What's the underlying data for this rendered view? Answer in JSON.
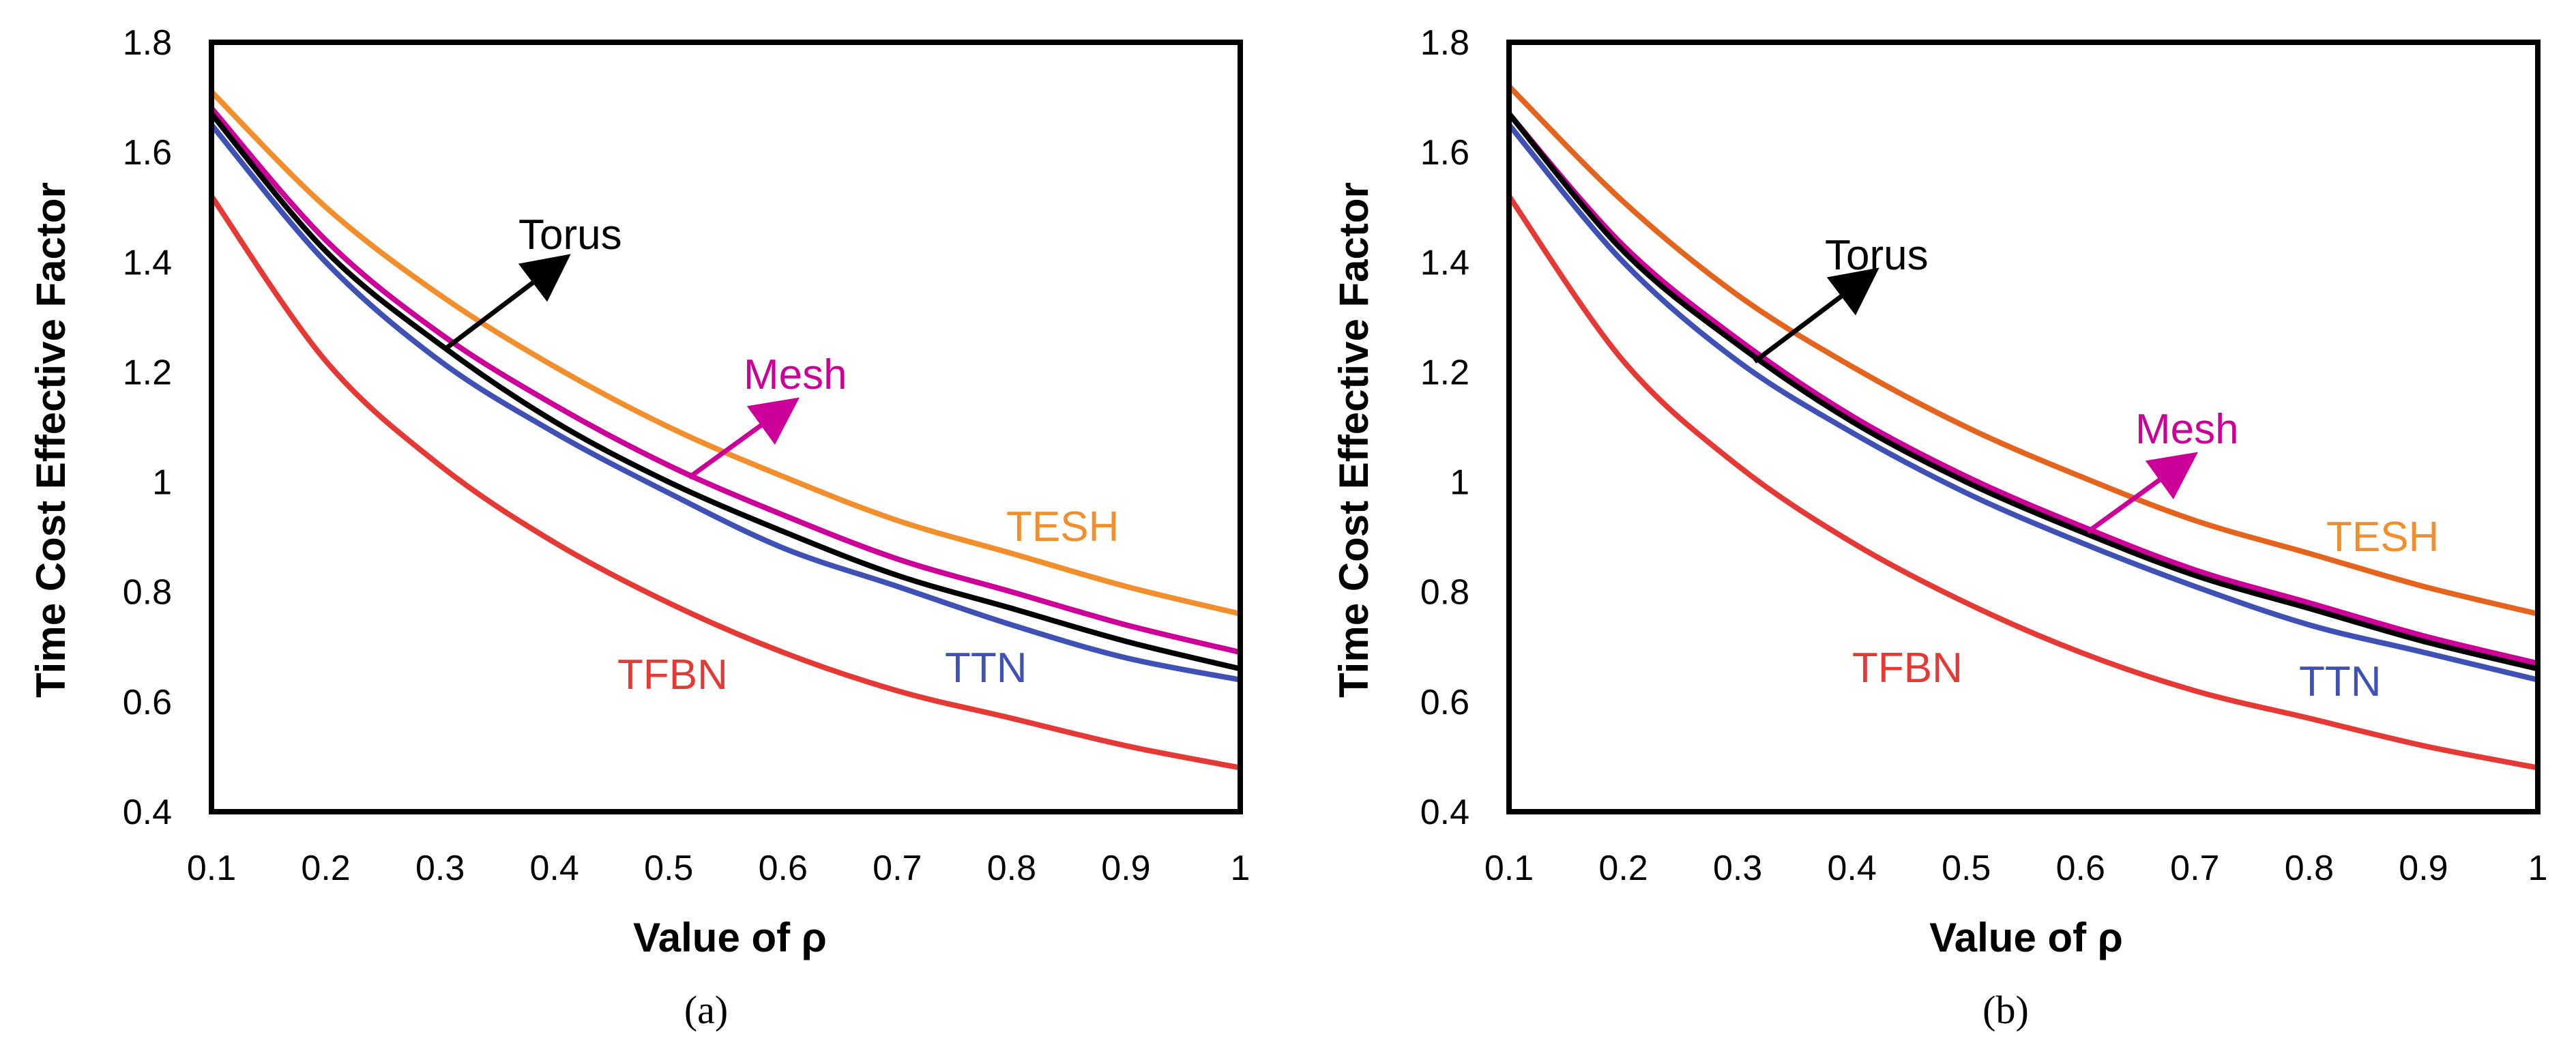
{
  "chart_data": [
    {
      "type": "line",
      "caption": "(a)",
      "title": "",
      "xlabel": "Value of ρ",
      "ylabel": "Time  Cost Effective Factor",
      "xlim": [
        0.1,
        1
      ],
      "ylim": [
        0.4,
        1.8
      ],
      "xticks": [
        "0.1",
        "0.2",
        "0.3",
        "0.4",
        "0.5",
        "0.6",
        "0.7",
        "0.8",
        "0.9",
        "1"
      ],
      "yticks": [
        "0.4",
        "0.6",
        "0.8",
        "1",
        "1.2",
        "1.4",
        "1.6",
        "1.8"
      ],
      "x": [
        0.1,
        0.2,
        0.3,
        0.4,
        0.5,
        0.6,
        0.7,
        0.8,
        0.9,
        1.0
      ],
      "series": [
        {
          "name": "TESH",
          "color": "#f28e2b",
          "values": [
            1.71,
            1.5,
            1.34,
            1.21,
            1.1,
            1.01,
            0.93,
            0.87,
            0.81,
            0.76
          ]
        },
        {
          "name": "Mesh",
          "color": "#cc0099",
          "values": [
            1.68,
            1.44,
            1.27,
            1.14,
            1.03,
            0.94,
            0.86,
            0.8,
            0.74,
            0.69
          ]
        },
        {
          "name": "Torus",
          "color": "#000000",
          "values": [
            1.67,
            1.42,
            1.25,
            1.11,
            1.0,
            0.91,
            0.83,
            0.77,
            0.71,
            0.66
          ]
        },
        {
          "name": "TTN",
          "color": "#3f51b5",
          "values": [
            1.65,
            1.4,
            1.22,
            1.09,
            0.98,
            0.88,
            0.81,
            0.74,
            0.68,
            0.64
          ]
        },
        {
          "name": "TFBN",
          "color": "#e53935",
          "values": [
            1.52,
            1.22,
            1.03,
            0.89,
            0.78,
            0.69,
            0.62,
            0.57,
            0.52,
            0.48
          ]
        }
      ],
      "annotations": [
        {
          "text": "Torus",
          "color": "#000000",
          "arrow": true
        },
        {
          "text": "Mesh",
          "color": "#cc0099",
          "arrow": true
        },
        {
          "text": "TESH",
          "color": "#f28e2b",
          "arrow": false
        },
        {
          "text": "TTN",
          "color": "#3f51b5",
          "arrow": false
        },
        {
          "text": "TFBN",
          "color": "#e53935",
          "arrow": false
        }
      ]
    },
    {
      "type": "line",
      "caption": "(b)",
      "title": "",
      "xlabel": "Value of ρ",
      "ylabel": "Time Cost Effective Factor",
      "xlim": [
        0.1,
        1
      ],
      "ylim": [
        0.4,
        1.8
      ],
      "xticks": [
        "0.1",
        "0.2",
        "0.3",
        "0.4",
        "0.5",
        "0.6",
        "0.7",
        "0.8",
        "0.9",
        "1"
      ],
      "yticks": [
        "0.4",
        "0.6",
        "0.8",
        "1",
        "1.2",
        "1.4",
        "1.6",
        "1.8"
      ],
      "x": [
        0.1,
        0.2,
        0.3,
        0.4,
        0.5,
        0.6,
        0.7,
        0.8,
        0.9,
        1.0
      ],
      "series": [
        {
          "name": "TESH",
          "color": "#e4641e",
          "values": [
            1.72,
            1.51,
            1.34,
            1.21,
            1.1,
            1.01,
            0.93,
            0.87,
            0.81,
            0.76
          ]
        },
        {
          "name": "Mesh",
          "color": "#cc0099",
          "values": [
            1.67,
            1.43,
            1.26,
            1.12,
            1.01,
            0.92,
            0.84,
            0.78,
            0.72,
            0.67
          ]
        },
        {
          "name": "Torus",
          "color": "#000000",
          "values": [
            1.67,
            1.42,
            1.25,
            1.11,
            1.0,
            0.91,
            0.83,
            0.77,
            0.71,
            0.66
          ]
        },
        {
          "name": "TTN",
          "color": "#3f51b5",
          "values": [
            1.65,
            1.4,
            1.22,
            1.09,
            0.98,
            0.89,
            0.81,
            0.74,
            0.69,
            0.64
          ]
        },
        {
          "name": "TFBN",
          "color": "#e53935",
          "values": [
            1.52,
            1.22,
            1.03,
            0.89,
            0.78,
            0.69,
            0.62,
            0.57,
            0.52,
            0.48
          ]
        }
      ],
      "annotations": [
        {
          "text": "Torus",
          "color": "#000000",
          "arrow": true
        },
        {
          "text": "Mesh",
          "color": "#cc0099",
          "arrow": true
        },
        {
          "text": "TESH",
          "color": "#f28e2b",
          "arrow": false
        },
        {
          "text": "TTN",
          "color": "#3f51b5",
          "arrow": false
        },
        {
          "text": "TFBN",
          "color": "#e53935",
          "arrow": false
        }
      ]
    }
  ]
}
